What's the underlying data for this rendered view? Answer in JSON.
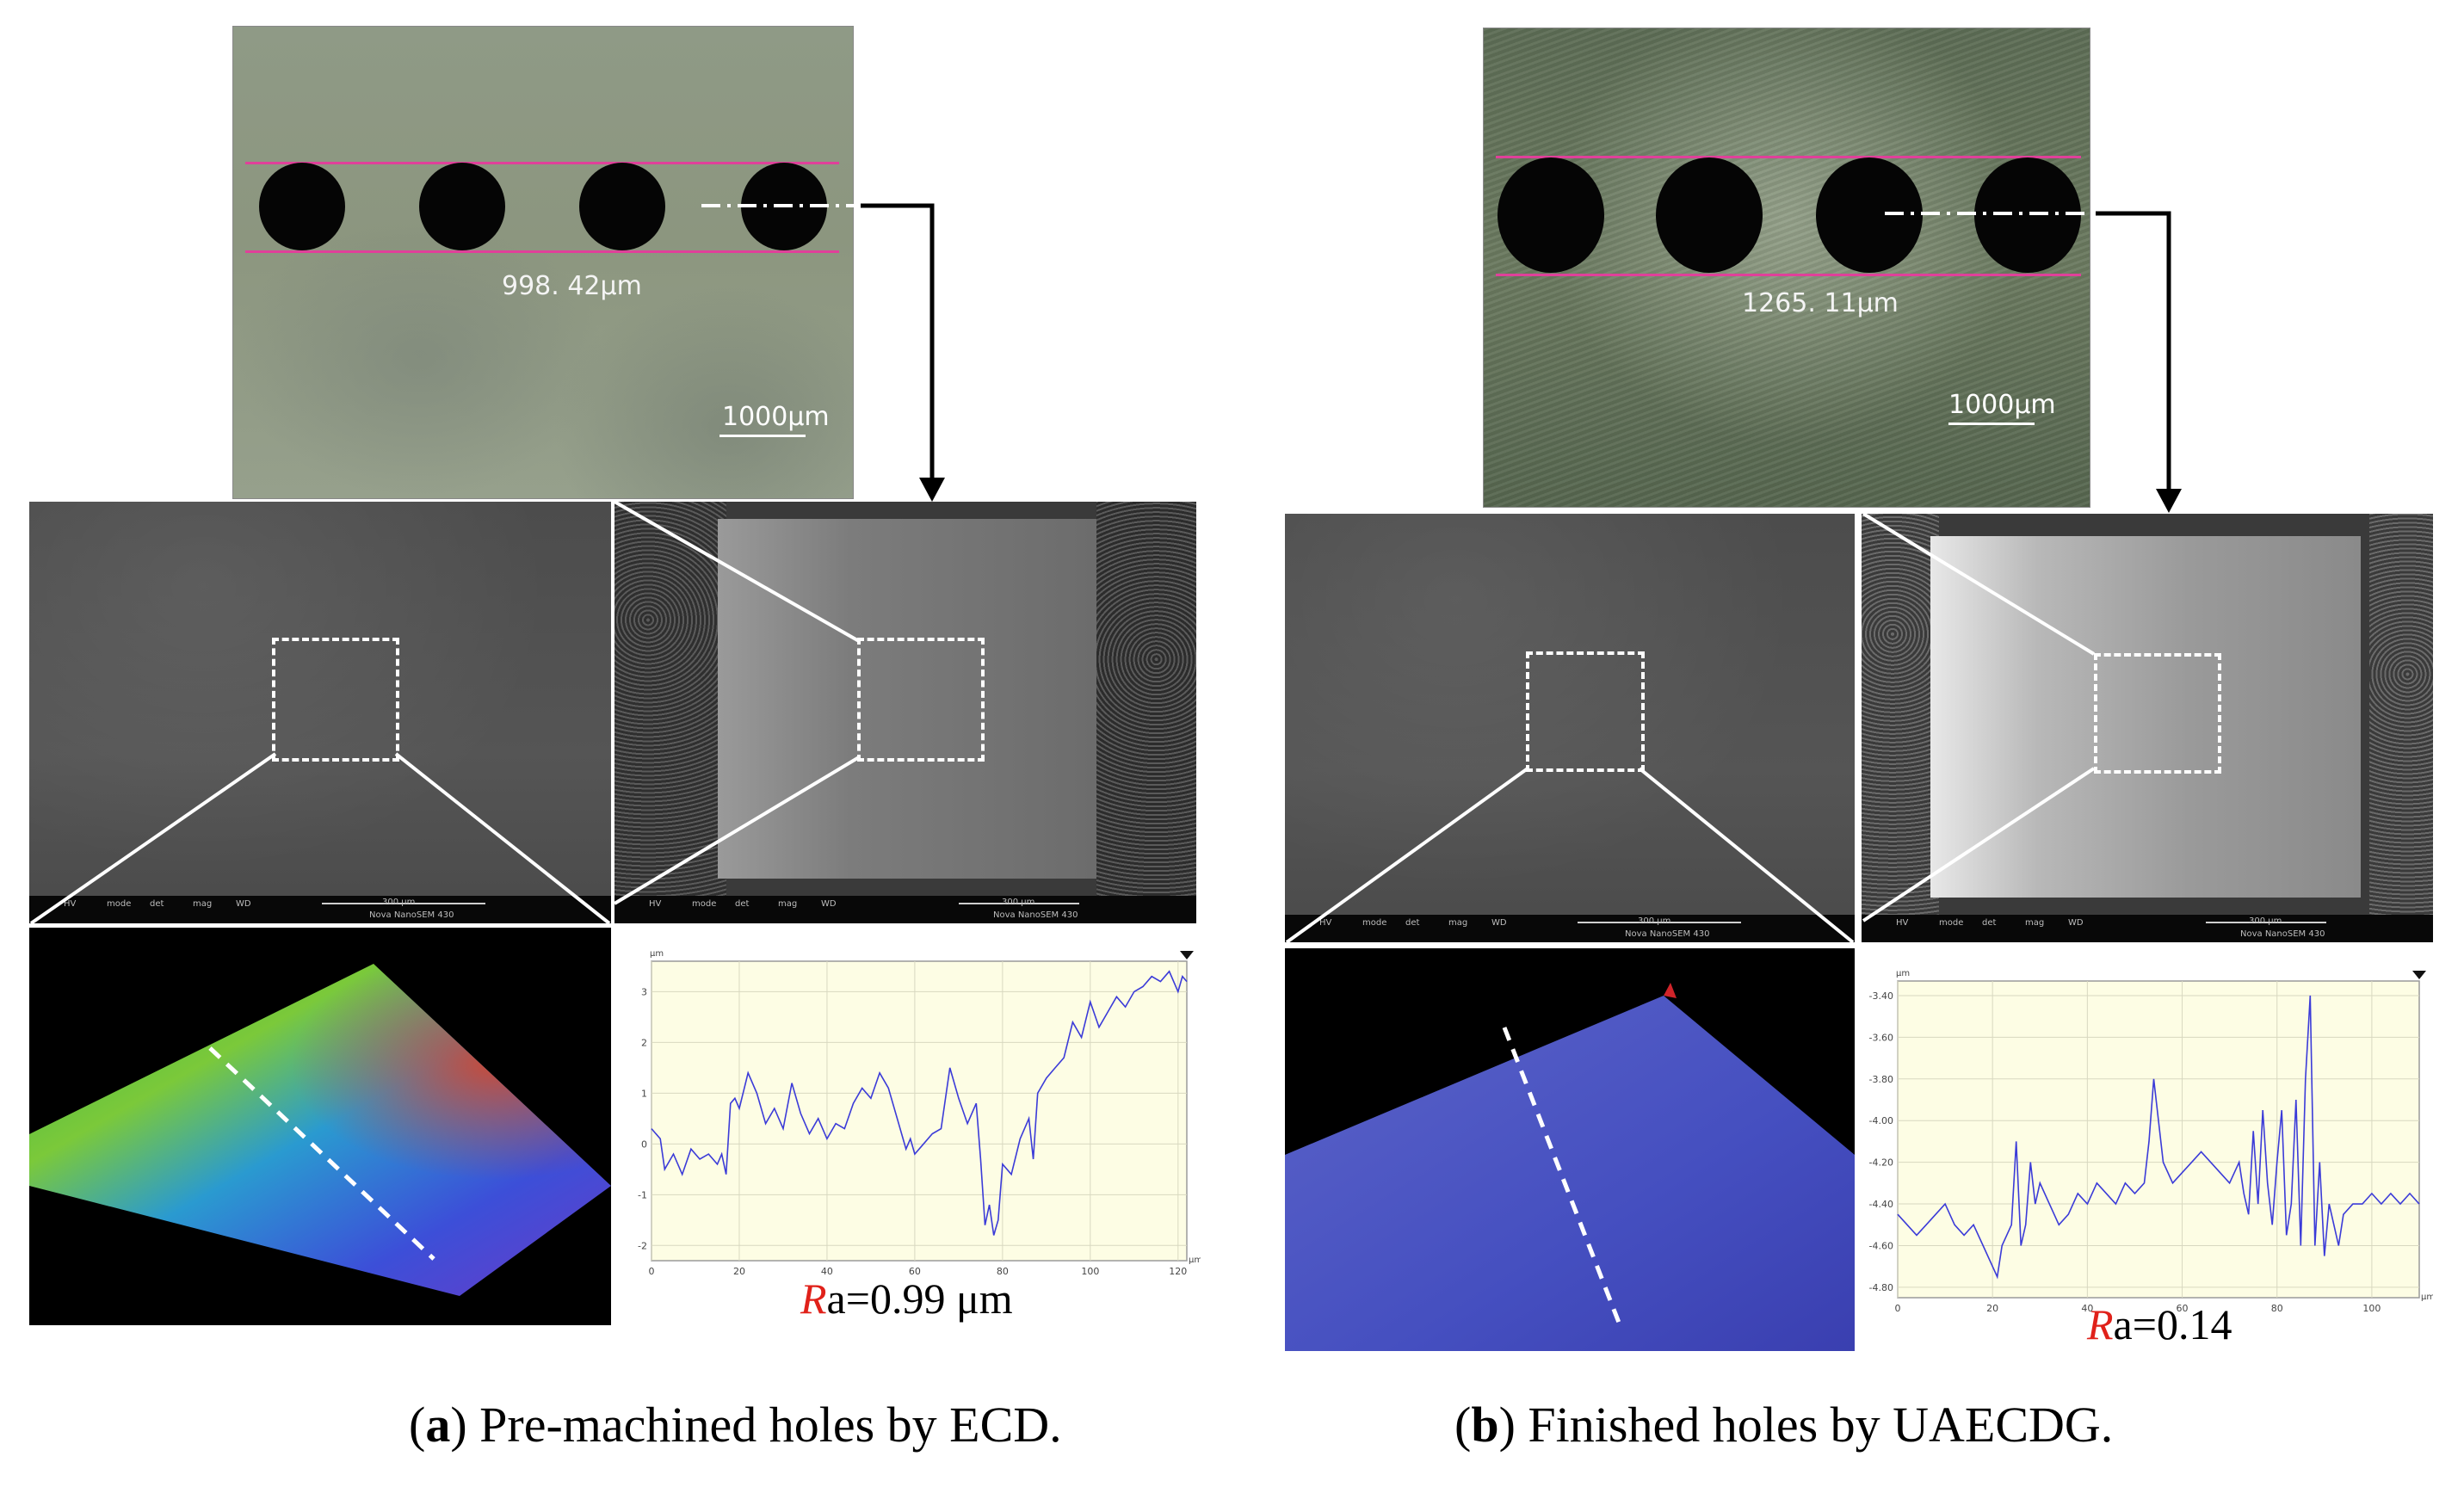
{
  "panel_a": {
    "optical": {
      "dimension_label": "998. 42μm",
      "scale_label": "1000μm"
    },
    "sem_left": {
      "databar": [
        "HV",
        "mode",
        "det",
        "mag",
        "WD",
        "300 µm",
        "Nova NanoSEM 430"
      ]
    },
    "sem_right": {
      "databar": [
        "HV",
        "mode",
        "det",
        "mag",
        "WD",
        "300 µm",
        "Nova NanoSEM 430"
      ]
    },
    "profile_chart": {
      "ra_symbol": "R",
      "ra_text": "a=0.99 μm",
      "y_unit": "µm",
      "x_unit": "µm"
    },
    "caption_label": "a",
    "caption_text": " Pre-machined holes by ECD."
  },
  "panel_b": {
    "optical": {
      "dimension_label": "1265. 11μm",
      "scale_label": "1000μm"
    },
    "sem_left": {
      "databar": [
        "HV",
        "mode",
        "det",
        "mag",
        "WD",
        "300 µm",
        "Nova NanoSEM 430"
      ]
    },
    "sem_right": {
      "databar": [
        "HV",
        "mode",
        "det",
        "mag",
        "WD",
        "300 µm",
        "Nova NanoSEM 430"
      ]
    },
    "profile_chart": {
      "ra_symbol": "R",
      "ra_text": "a=0.14",
      "y_unit": "µm",
      "x_unit": "µm"
    },
    "caption_label": "b",
    "caption_text": " Finished holes by UAECDG."
  },
  "chart_data": [
    {
      "type": "line",
      "x_ticks": [
        "0",
        "20",
        "40",
        "60",
        "80",
        "100",
        "120"
      ],
      "y_ticks": [
        "3",
        "2",
        "1",
        "0",
        "-1",
        "-2"
      ],
      "xlim": [
        0,
        122
      ],
      "ylim": [
        -2.3,
        3.6
      ],
      "grid": true,
      "series": [
        {
          "color": "#3b3bd8",
          "x": [
            0,
            2,
            3,
            5,
            7,
            9,
            11,
            13,
            15,
            16,
            17,
            18,
            19,
            20,
            22,
            24,
            26,
            28,
            30,
            32,
            34,
            36,
            38,
            40,
            42,
            44,
            46,
            48,
            50,
            52,
            54,
            56,
            58,
            59,
            60,
            62,
            64,
            66,
            68,
            70,
            72,
            74,
            75,
            76,
            77,
            78,
            79,
            80,
            82,
            84,
            86,
            87,
            88,
            90,
            92,
            94,
            96,
            98,
            100,
            102,
            104,
            106,
            108,
            110,
            112,
            114,
            116,
            118,
            120,
            121,
            122
          ],
          "y": [
            0.3,
            0.1,
            -0.5,
            -0.2,
            -0.6,
            -0.1,
            -0.3,
            -0.2,
            -0.4,
            -0.2,
            -0.6,
            0.8,
            0.9,
            0.7,
            1.4,
            1.0,
            0.4,
            0.7,
            0.3,
            1.2,
            0.6,
            0.2,
            0.5,
            0.1,
            0.4,
            0.3,
            0.8,
            1.1,
            0.9,
            1.4,
            1.1,
            0.5,
            -0.1,
            0.1,
            -0.2,
            0.0,
            0.2,
            0.3,
            1.5,
            0.9,
            0.4,
            0.8,
            -0.3,
            -1.6,
            -1.2,
            -1.8,
            -1.5,
            -0.4,
            -0.6,
            0.1,
            0.5,
            -0.3,
            1.0,
            1.3,
            1.5,
            1.7,
            2.4,
            2.1,
            2.8,
            2.3,
            2.6,
            2.9,
            2.7,
            3.0,
            3.1,
            3.3,
            3.2,
            3.4,
            3.0,
            3.3,
            3.2
          ]
        }
      ]
    },
    {
      "type": "line",
      "x_ticks": [
        "0",
        "20",
        "40",
        "60",
        "80",
        "100"
      ],
      "y_ticks": [
        "-3.40",
        "-3.60",
        "-3.80",
        "-4.00",
        "-4.20",
        "-4.40",
        "-4.60",
        "-4.80"
      ],
      "xlim": [
        0,
        110
      ],
      "ylim": [
        -4.85,
        -3.33
      ],
      "grid": true,
      "series": [
        {
          "color": "#3b3bd8",
          "x": [
            0,
            2,
            4,
            6,
            8,
            10,
            12,
            14,
            16,
            18,
            20,
            21,
            22,
            23,
            24,
            25,
            26,
            27,
            28,
            29,
            30,
            32,
            34,
            36,
            38,
            40,
            42,
            44,
            46,
            48,
            50,
            52,
            53,
            54,
            55,
            56,
            58,
            60,
            62,
            64,
            66,
            68,
            70,
            72,
            73,
            74,
            75,
            76,
            77,
            78,
            79,
            80,
            81,
            82,
            83,
            84,
            85,
            86,
            87,
            88,
            89,
            90,
            91,
            92,
            93,
            94,
            96,
            98,
            100,
            102,
            104,
            106,
            108,
            110
          ],
          "y": [
            -4.45,
            -4.5,
            -4.55,
            -4.5,
            -4.45,
            -4.4,
            -4.5,
            -4.55,
            -4.5,
            -4.6,
            -4.7,
            -4.75,
            -4.6,
            -4.55,
            -4.5,
            -4.1,
            -4.6,
            -4.5,
            -4.2,
            -4.4,
            -4.3,
            -4.4,
            -4.5,
            -4.45,
            -4.35,
            -4.4,
            -4.3,
            -4.35,
            -4.4,
            -4.3,
            -4.35,
            -4.3,
            -4.1,
            -3.8,
            -4.0,
            -4.2,
            -4.3,
            -4.25,
            -4.2,
            -4.15,
            -4.2,
            -4.25,
            -4.3,
            -4.2,
            -4.35,
            -4.45,
            -4.05,
            -4.4,
            -3.95,
            -4.3,
            -4.5,
            -4.2,
            -3.95,
            -4.55,
            -4.4,
            -3.9,
            -4.6,
            -3.8,
            -3.4,
            -4.6,
            -4.2,
            -4.65,
            -4.4,
            -4.5,
            -4.6,
            -4.45,
            -4.4,
            -4.4,
            -4.35,
            -4.4,
            -4.35,
            -4.4,
            -4.35,
            -4.4
          ]
        }
      ]
    }
  ]
}
